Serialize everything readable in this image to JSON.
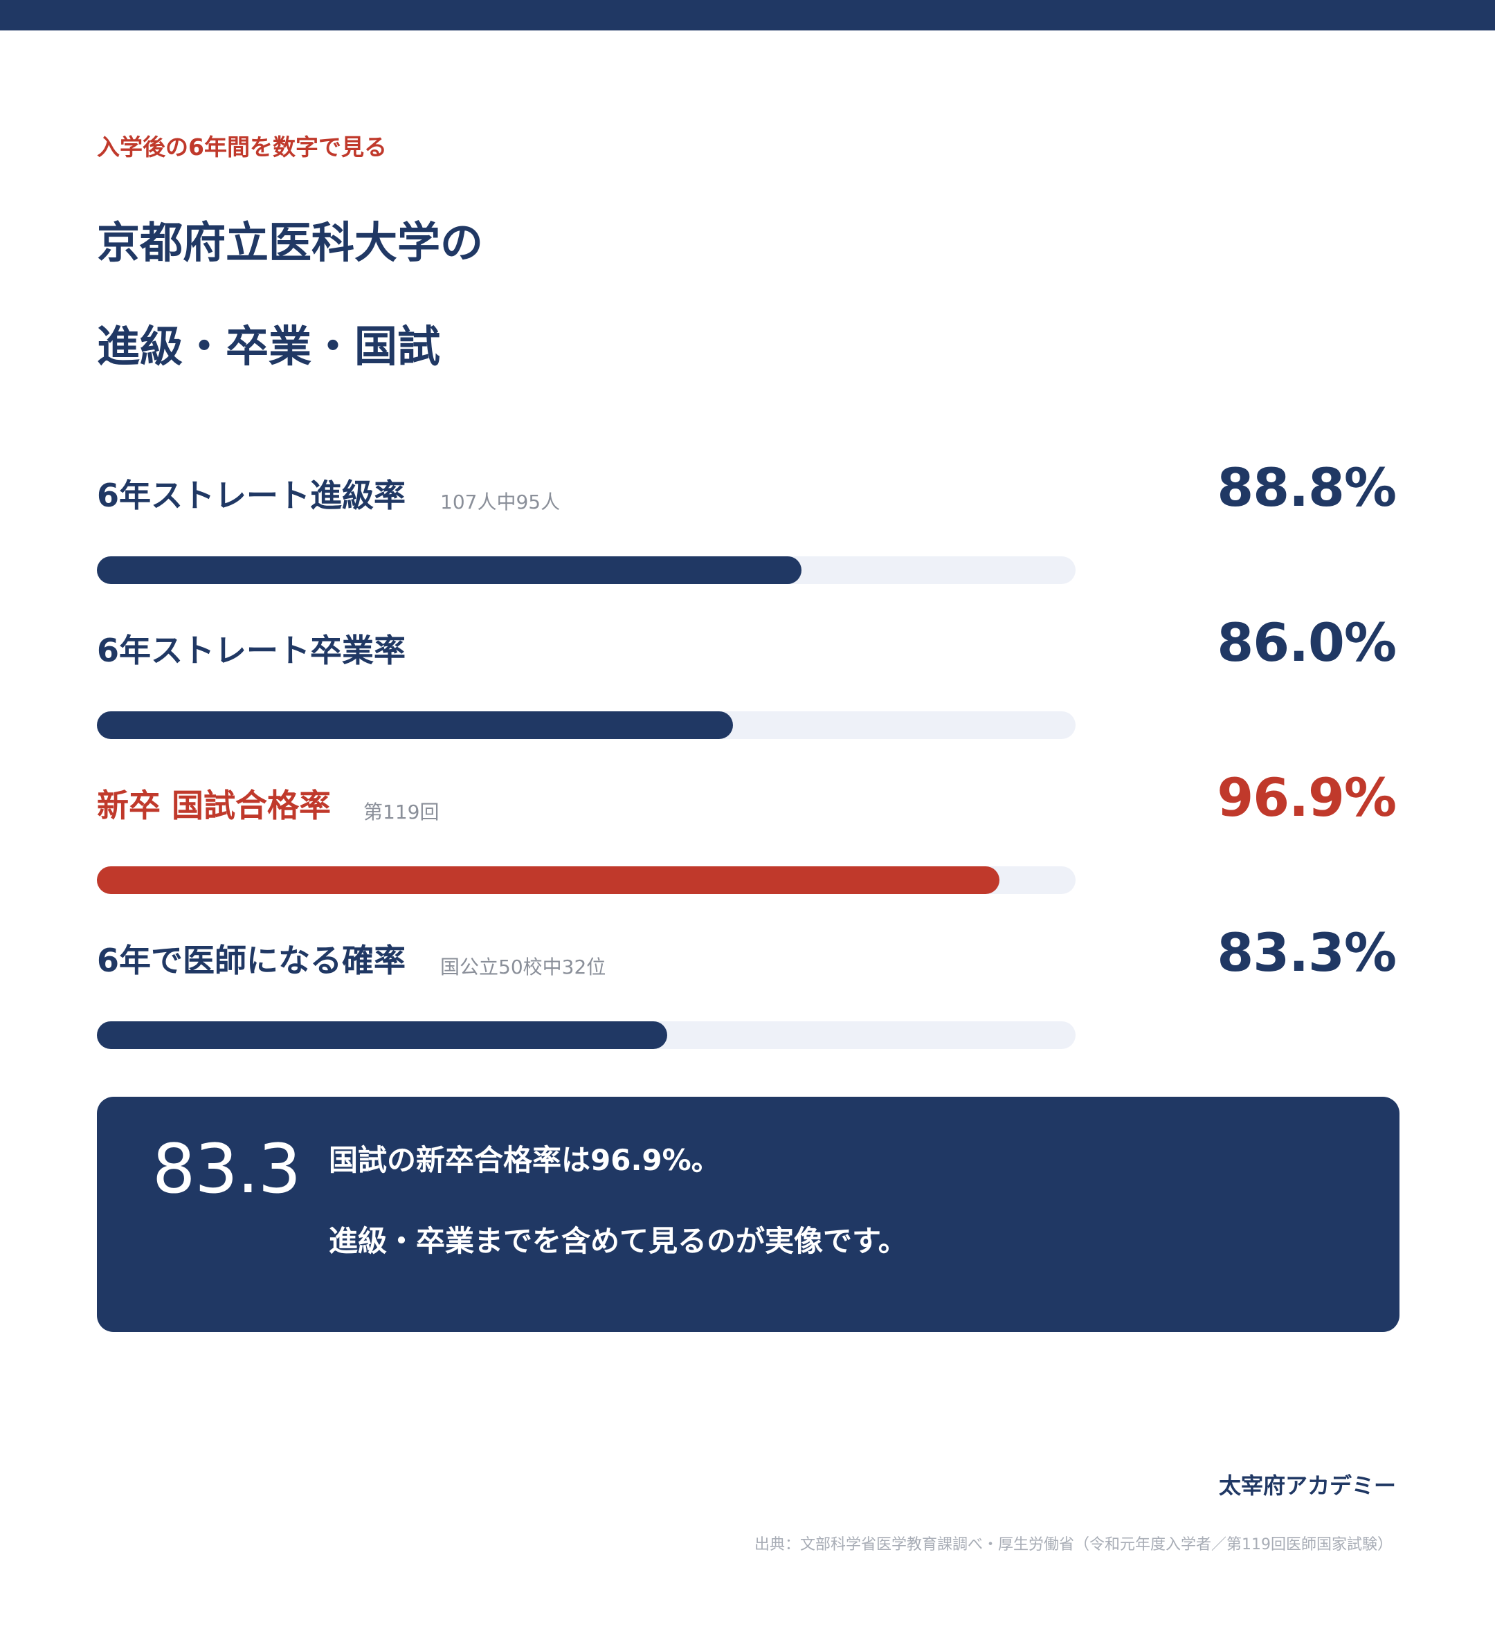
{
  "eyebrow": "入学後の6年間を数字で見る",
  "title": {
    "line1": "京都府立医科大学の",
    "line2": "進級・卒業・国試"
  },
  "chart_data": {
    "type": "bar",
    "orientation": "horizontal",
    "categories": [
      "6年ストレート進級率",
      "6年ストレート卒業率",
      "新卒 国試合格率",
      "6年で医師になる確率"
    ],
    "values": [
      88.8,
      86.0,
      96.9,
      83.3
    ],
    "value_labels": [
      "88.8%",
      "86.0%",
      "96.9%",
      "83.3%"
    ],
    "notes": [
      "107人中95人",
      "",
      "第119回",
      "国公立50校中32位"
    ],
    "highlight_index": 2,
    "colors": {
      "default": "#203864",
      "highlight": "#c0392b",
      "track": "#eef1f8"
    },
    "xlim": [
      60,
      100
    ]
  },
  "callout": {
    "number": "83.3",
    "line1": "国試の新卒合格率は96.9%。",
    "line2": "進級・卒業までを含めて見るのが実像です。"
  },
  "footer": {
    "brand": "太宰府アカデミー",
    "source": "出典：文部科学省医学教育課調べ・厚生労働省（令和元年度入学者／第119回医師国家試験）"
  }
}
